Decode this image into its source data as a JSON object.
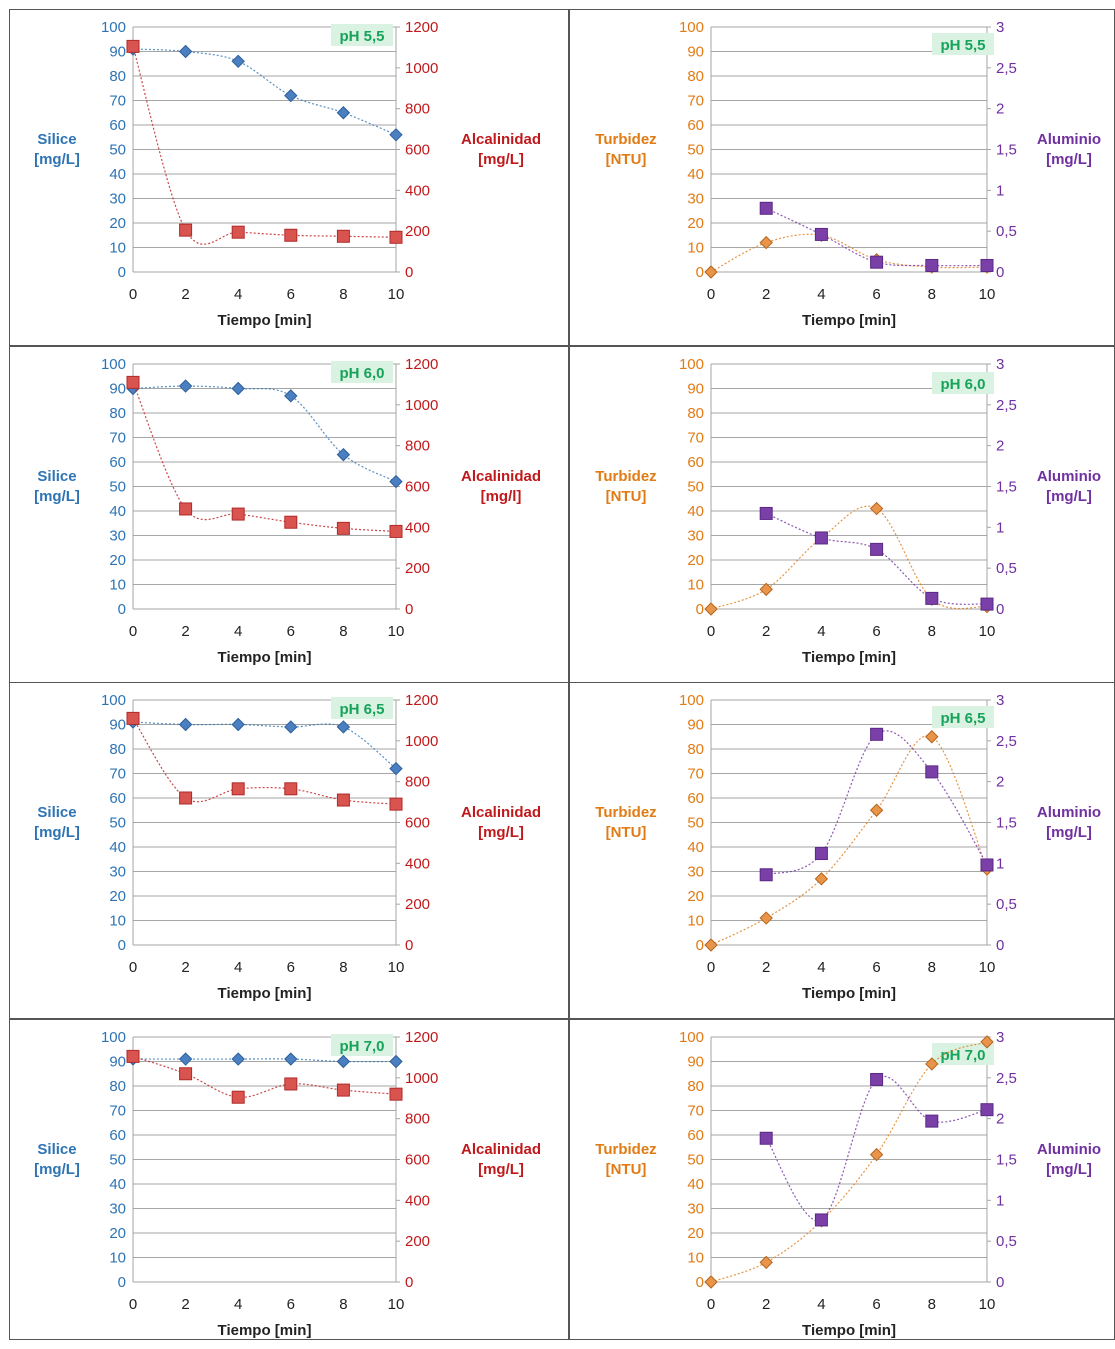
{
  "colors": {
    "silice": "#2e74b5",
    "alcalinidad": "#c0191c",
    "turbidez": "#e07b15",
    "aluminio": "#7030a0",
    "ph_text": "#18a35a",
    "ph_bg": "#d9f2e1",
    "grid": "#a6a6a6",
    "panel_border": "#555555",
    "silice_marker": "#4a7fc1",
    "silice_marker_edge": "#2e5f99",
    "alcalinidad_marker": "#d9534f",
    "alcalinidad_marker_edge": "#b02a2a",
    "turbidez_marker": "#e8954a",
    "turbidez_marker_edge": "#b5651d",
    "aluminio_marker": "#7b3fa8",
    "aluminio_marker_edge": "#5a2a85"
  },
  "chart_data": [
    {
      "type": "scatter",
      "ph_label": "pH 5,5",
      "xlabel": "Tiempo [min]",
      "left_axis_label": [
        "Silice",
        "[mg/L]"
      ],
      "right_axis_label": [
        "Alcalinidad",
        "[mg/L]"
      ],
      "xticks": [
        "0",
        "2",
        "4",
        "6",
        "8",
        "10"
      ],
      "left_ticks": [
        "0",
        "10",
        "20",
        "30",
        "40",
        "50",
        "60",
        "70",
        "80",
        "90",
        "100"
      ],
      "right_ticks": [
        "0",
        "200",
        "400",
        "600",
        "800",
        "1000",
        "1200"
      ],
      "xlim": [
        0,
        10
      ],
      "left_lim": [
        0,
        100
      ],
      "right_lim": [
        0,
        1200
      ],
      "series": [
        {
          "key": "silice",
          "axis": "left",
          "marker": "diamond",
          "x": [
            0,
            2,
            4,
            6,
            8,
            10
          ],
          "y": [
            91,
            90,
            86,
            72,
            65,
            56
          ]
        },
        {
          "key": "alcalinidad",
          "axis": "right",
          "marker": "square",
          "x": [
            0,
            2,
            4,
            6,
            8,
            10
          ],
          "y": [
            1105,
            205,
            195,
            180,
            175,
            170
          ]
        }
      ]
    },
    {
      "type": "scatter",
      "ph_label": "pH 5,5",
      "xlabel": "Tiempo [min]",
      "left_axis_label": [
        "Turbidez",
        "[NTU]"
      ],
      "right_axis_label": [
        "Aluminio",
        "[mg/L]"
      ],
      "xticks": [
        "0",
        "2",
        "4",
        "6",
        "8",
        "10"
      ],
      "left_ticks": [
        "0",
        "10",
        "20",
        "30",
        "40",
        "50",
        "60",
        "70",
        "80",
        "90",
        "100"
      ],
      "right_ticks": [
        "0",
        "0,5",
        "1",
        "1,5",
        "2",
        "2,5",
        "3"
      ],
      "xlim": [
        0,
        10
      ],
      "left_lim": [
        0,
        100
      ],
      "right_lim": [
        0,
        3
      ],
      "series": [
        {
          "key": "turbidez",
          "axis": "left",
          "marker": "diamond",
          "x": [
            0,
            2,
            4,
            6,
            8,
            10
          ],
          "y": [
            0,
            12,
            15,
            5,
            2,
            2
          ]
        },
        {
          "key": "aluminio",
          "axis": "right",
          "marker": "square",
          "x": [
            2,
            4,
            6,
            8,
            10
          ],
          "y": [
            0.78,
            0.46,
            0.12,
            0.08,
            0.08
          ]
        }
      ]
    },
    {
      "type": "scatter",
      "ph_label": "pH 6,0",
      "xlabel": "Tiempo [min]",
      "left_axis_label": [
        "Silice",
        "[mg/L]"
      ],
      "right_axis_label": [
        "Alcalinidad",
        "[mg/l]"
      ],
      "xticks": [
        "0",
        "2",
        "4",
        "6",
        "8",
        "10"
      ],
      "left_ticks": [
        "0",
        "10",
        "20",
        "30",
        "40",
        "50",
        "60",
        "70",
        "80",
        "90",
        "100"
      ],
      "right_ticks": [
        "0",
        "200",
        "400",
        "600",
        "800",
        "1000",
        "1200"
      ],
      "xlim": [
        0,
        10
      ],
      "left_lim": [
        0,
        100
      ],
      "right_lim": [
        0,
        1200
      ],
      "series": [
        {
          "key": "silice",
          "axis": "left",
          "marker": "diamond",
          "x": [
            0,
            2,
            4,
            6,
            8,
            10
          ],
          "y": [
            90,
            91,
            90,
            87,
            63,
            52
          ]
        },
        {
          "key": "alcalinidad",
          "axis": "right",
          "marker": "square",
          "x": [
            0,
            2,
            4,
            6,
            8,
            10
          ],
          "y": [
            1110,
            490,
            465,
            425,
            395,
            380
          ]
        }
      ]
    },
    {
      "type": "scatter",
      "ph_label": "pH 6,0",
      "xlabel": "Tiempo [min]",
      "left_axis_label": [
        "Turbidez",
        "[NTU]"
      ],
      "right_axis_label": [
        "Aluminio",
        "[mg/L]"
      ],
      "xticks": [
        "0",
        "2",
        "4",
        "6",
        "8",
        "10"
      ],
      "left_ticks": [
        "0",
        "10",
        "20",
        "30",
        "40",
        "50",
        "60",
        "70",
        "80",
        "90",
        "100"
      ],
      "right_ticks": [
        "0",
        "0,5",
        "1",
        "1,5",
        "2",
        "2,5",
        "3"
      ],
      "xlim": [
        0,
        10
      ],
      "left_lim": [
        0,
        100
      ],
      "right_lim": [
        0,
        3
      ],
      "series": [
        {
          "key": "turbidez",
          "axis": "left",
          "marker": "diamond",
          "x": [
            0,
            2,
            4,
            6,
            8,
            10
          ],
          "y": [
            0,
            8,
            29,
            41,
            4,
            1
          ]
        },
        {
          "key": "aluminio",
          "axis": "right",
          "marker": "square",
          "x": [
            2,
            4,
            6,
            8,
            10
          ],
          "y": [
            1.17,
            0.87,
            0.73,
            0.13,
            0.06
          ]
        }
      ]
    },
    {
      "type": "scatter",
      "ph_label": "pH 6,5",
      "xlabel": "Tiempo [min]",
      "left_axis_label": [
        "Silice",
        "[mg/L]"
      ],
      "right_axis_label": [
        "Alcalinidad",
        "[mg/L]"
      ],
      "xticks": [
        "0",
        "2",
        "4",
        "6",
        "8",
        "10"
      ],
      "left_ticks": [
        "0",
        "10",
        "20",
        "30",
        "40",
        "50",
        "60",
        "70",
        "80",
        "90",
        "100"
      ],
      "right_ticks": [
        "0",
        "200",
        "400",
        "600",
        "800",
        "1000",
        "1200"
      ],
      "xlim": [
        0,
        10
      ],
      "left_lim": [
        0,
        100
      ],
      "right_lim": [
        0,
        1200
      ],
      "series": [
        {
          "key": "silice",
          "axis": "left",
          "marker": "diamond",
          "x": [
            0,
            2,
            4,
            6,
            8,
            10
          ],
          "y": [
            91,
            90,
            90,
            89,
            89,
            72
          ]
        },
        {
          "key": "alcalinidad",
          "axis": "right",
          "marker": "square",
          "x": [
            0,
            2,
            4,
            6,
            8,
            10
          ],
          "y": [
            1110,
            720,
            765,
            765,
            710,
            690
          ]
        }
      ]
    },
    {
      "type": "scatter",
      "ph_label": "pH 6,5",
      "xlabel": "Tiempo [min]",
      "left_axis_label": [
        "Turbidez",
        "[NTU]"
      ],
      "right_axis_label": [
        "Aluminio",
        "[mg/L]"
      ],
      "xticks": [
        "0",
        "2",
        "4",
        "6",
        "8",
        "10"
      ],
      "left_ticks": [
        "0",
        "10",
        "20",
        "30",
        "40",
        "50",
        "60",
        "70",
        "80",
        "90",
        "100"
      ],
      "right_ticks": [
        "0",
        "0,5",
        "1",
        "1,5",
        "2",
        "2,5",
        "3"
      ],
      "xlim": [
        0,
        10
      ],
      "left_lim": [
        0,
        100
      ],
      "right_lim": [
        0,
        3
      ],
      "series": [
        {
          "key": "turbidez",
          "axis": "left",
          "marker": "diamond",
          "x": [
            0,
            2,
            4,
            6,
            8,
            10
          ],
          "y": [
            0,
            11,
            27,
            55,
            85,
            31
          ]
        },
        {
          "key": "aluminio",
          "axis": "right",
          "marker": "square",
          "x": [
            2,
            4,
            6,
            8,
            10
          ],
          "y": [
            0.86,
            1.12,
            2.58,
            2.12,
            0.98
          ]
        }
      ]
    },
    {
      "type": "scatter",
      "ph_label": "pH 7,0",
      "xlabel": "Tiempo [min]",
      "left_axis_label": [
        "Silice",
        "[mg/L]"
      ],
      "right_axis_label": [
        "Alcalinidad",
        "[mg/L]"
      ],
      "xticks": [
        "0",
        "2",
        "4",
        "6",
        "8",
        "10"
      ],
      "left_ticks": [
        "0",
        "10",
        "20",
        "30",
        "40",
        "50",
        "60",
        "70",
        "80",
        "90",
        "100"
      ],
      "right_ticks": [
        "0",
        "200",
        "400",
        "600",
        "800",
        "1000",
        "1200"
      ],
      "xlim": [
        0,
        10
      ],
      "left_lim": [
        0,
        100
      ],
      "right_lim": [
        0,
        1200
      ],
      "series": [
        {
          "key": "silice",
          "axis": "left",
          "marker": "diamond",
          "x": [
            0,
            2,
            4,
            6,
            8,
            10
          ],
          "y": [
            91,
            91,
            91,
            91,
            90,
            90
          ]
        },
        {
          "key": "alcalinidad",
          "axis": "right",
          "marker": "square",
          "x": [
            0,
            2,
            4,
            6,
            8,
            10
          ],
          "y": [
            1105,
            1020,
            905,
            970,
            940,
            920
          ]
        }
      ]
    },
    {
      "type": "scatter",
      "ph_label": "pH 7,0",
      "xlabel": "Tiempo [min]",
      "left_axis_label": [
        "Turbidez",
        "[NTU]"
      ],
      "right_axis_label": [
        "Aluminio",
        "[mg/L]"
      ],
      "xticks": [
        "0",
        "2",
        "4",
        "6",
        "8",
        "10"
      ],
      "left_ticks": [
        "0",
        "10",
        "20",
        "30",
        "40",
        "50",
        "60",
        "70",
        "80",
        "90",
        "100"
      ],
      "right_ticks": [
        "0",
        "0,5",
        "1",
        "1,5",
        "2",
        "2,5",
        "3"
      ],
      "xlim": [
        0,
        10
      ],
      "left_lim": [
        0,
        100
      ],
      "right_lim": [
        0,
        3
      ],
      "series": [
        {
          "key": "turbidez",
          "axis": "left",
          "marker": "diamond",
          "x": [
            0,
            2,
            4,
            6,
            8,
            10
          ],
          "y": [
            0,
            8,
            25,
            52,
            89,
            98
          ]
        },
        {
          "key": "aluminio",
          "axis": "right",
          "marker": "square",
          "x": [
            2,
            4,
            6,
            8,
            10
          ],
          "y": [
            1.76,
            0.76,
            2.48,
            1.97,
            2.11
          ]
        }
      ]
    }
  ]
}
